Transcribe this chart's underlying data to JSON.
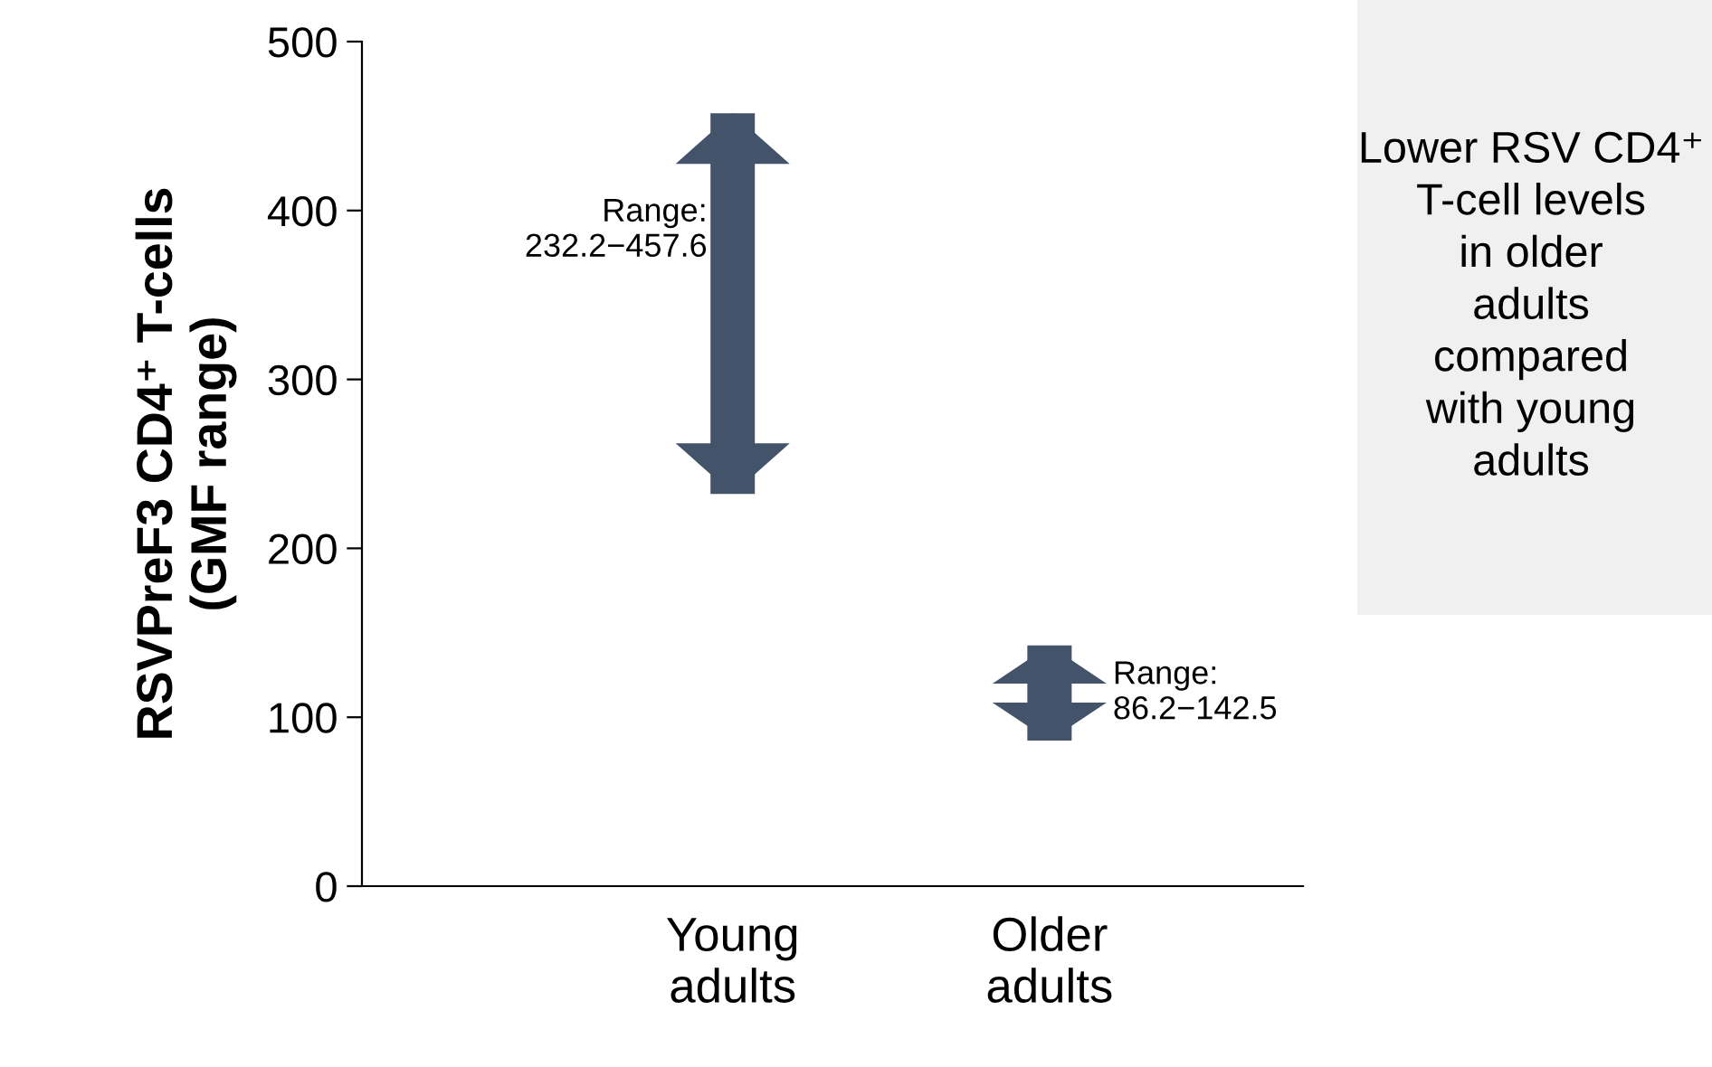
{
  "chart_data": {
    "type": "bar",
    "ylabel": "RSVPreF3 CD4⁺ T-cells\n(GMF range)",
    "categories": [
      "Young\nadults",
      "Older\nadults"
    ],
    "base": [
      232.2,
      86.2
    ],
    "values": [
      225.4,
      56.3
    ],
    "value_labels": [
      "Range:\n232.2−457.6",
      "Range:\n86.2−142.5"
    ],
    "color": "#435369",
    "ylim": [
      0,
      500
    ],
    "yticks": [
      0,
      100,
      200,
      300,
      400,
      500
    ],
    "grid": false,
    "legend": false,
    "annotations": [
      "Lower RSV CD4⁺\nT-cell levels\nin older\nadults\ncompared\nwith young\nadults"
    ]
  }
}
